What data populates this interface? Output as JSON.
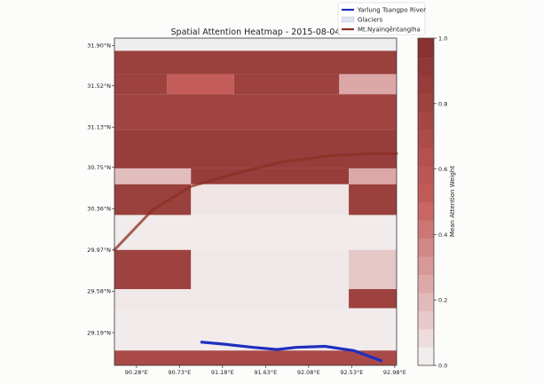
{
  "chart_data": {
    "type": "heatmap",
    "title": "Spatial Attention Heatmap - 2015-08-04",
    "x_tick_labels": [
      "90.28°E",
      "90.73°E",
      "91.18°E",
      "91.63°E",
      "92.08°E",
      "92.53°E",
      "92.98°E"
    ],
    "y_tick_labels": [
      "31.90°N",
      "31.52°N",
      "31.13°N",
      "30.75°N",
      "30.36°N",
      "29.97°N",
      "29.58°N",
      "29.19°N"
    ],
    "colorbar": {
      "label": "Mean Attention Weight",
      "range": [
        0.0,
        1.0
      ],
      "tick_labels": [
        "0.0",
        "0.2",
        "0.4",
        "0.6",
        "0.8",
        "1.0"
      ],
      "colors": [
        "#f4f4f4",
        "#c0504d",
        "#7a1f1c"
      ]
    },
    "legend": {
      "placement": "top-right",
      "entries": [
        {
          "label": "Yarlung Tsangpo River",
          "color": "#1f2fbf"
        },
        {
          "label": "Glaciers",
          "color": "#dde3f0"
        },
        {
          "label": "Mt.Nyainqêntanglha",
          "color": "#8b2f22"
        }
      ]
    },
    "grid": false,
    "rows": [
      {
        "lat_range": [
          31.85,
          31.63
        ],
        "blocks": [
          {
            "lon": [
              90.05,
              93.0
            ],
            "value": 0.82
          }
        ]
      },
      {
        "lat_range": [
          31.63,
          31.44
        ],
        "blocks": [
          {
            "lon": [
              90.05,
              90.6
            ],
            "value": 0.8
          },
          {
            "lon": [
              90.6,
              91.3
            ],
            "value": 0.5
          },
          {
            "lon": [
              91.3,
              92.4
            ],
            "value": 0.8
          },
          {
            "lon": [
              92.4,
              93.0
            ],
            "value": 0.25
          }
        ]
      },
      {
        "lat_range": [
          31.44,
          31.1
        ],
        "blocks": [
          {
            "lon": [
              90.05,
              93.0
            ],
            "value": 0.78
          }
        ]
      },
      {
        "lat_range": [
          31.1,
          30.74
        ],
        "blocks": [
          {
            "lon": [
              90.05,
              93.0
            ],
            "value": 0.85
          }
        ]
      },
      {
        "lat_range": [
          30.74,
          30.59
        ],
        "blocks": [
          {
            "lon": [
              90.05,
              90.85
            ],
            "value": 0.18
          },
          {
            "lon": [
              90.85,
              92.5
            ],
            "value": 0.85
          },
          {
            "lon": [
              92.5,
              93.0
            ],
            "value": 0.25
          }
        ]
      },
      {
        "lat_range": [
          30.59,
          30.3
        ],
        "blocks": [
          {
            "lon": [
              90.05,
              90.85
            ],
            "value": 0.82
          },
          {
            "lon": [
              90.85,
              92.5
            ],
            "value": 0.05
          },
          {
            "lon": [
              92.5,
              93.0
            ],
            "value": 0.82
          }
        ]
      },
      {
        "lat_range": [
          30.3,
          29.97
        ],
        "blocks": [
          {
            "lon": [
              90.05,
              93.0
            ],
            "value": 0.03
          }
        ]
      },
      {
        "lat_range": [
          29.97,
          29.6
        ],
        "blocks": [
          {
            "lon": [
              90.05,
              90.85
            ],
            "value": 0.8
          },
          {
            "lon": [
              90.85,
              92.5
            ],
            "value": 0.04
          },
          {
            "lon": [
              92.5,
              93.0
            ],
            "value": 0.15
          }
        ]
      },
      {
        "lat_range": [
          29.6,
          29.42
        ],
        "blocks": [
          {
            "lon": [
              90.05,
              92.5
            ],
            "value": 0.04
          },
          {
            "lon": [
              92.5,
              93.0
            ],
            "value": 0.8
          }
        ]
      },
      {
        "lat_range": [
          29.42,
          29.02
        ],
        "blocks": [
          {
            "lon": [
              90.05,
              93.0
            ],
            "value": 0.03
          }
        ]
      },
      {
        "lat_range": [
          29.02,
          28.88
        ],
        "blocks": [
          {
            "lon": [
              90.05,
              93.0
            ],
            "value": 0.7
          }
        ]
      }
    ],
    "river_path": [
      [
        90.95,
        29.1
      ],
      [
        91.2,
        29.08
      ],
      [
        91.5,
        29.05
      ],
      [
        91.75,
        29.03
      ],
      [
        91.95,
        29.05
      ],
      [
        92.25,
        29.06
      ],
      [
        92.55,
        29.02
      ],
      [
        92.85,
        28.92
      ]
    ],
    "mountain_path": [
      [
        90.05,
        29.97
      ],
      [
        90.45,
        30.35
      ],
      [
        90.85,
        30.57
      ],
      [
        91.35,
        30.7
      ],
      [
        91.8,
        30.8
      ],
      [
        92.3,
        30.86
      ],
      [
        92.7,
        30.88
      ],
      [
        93.0,
        30.88
      ]
    ]
  }
}
